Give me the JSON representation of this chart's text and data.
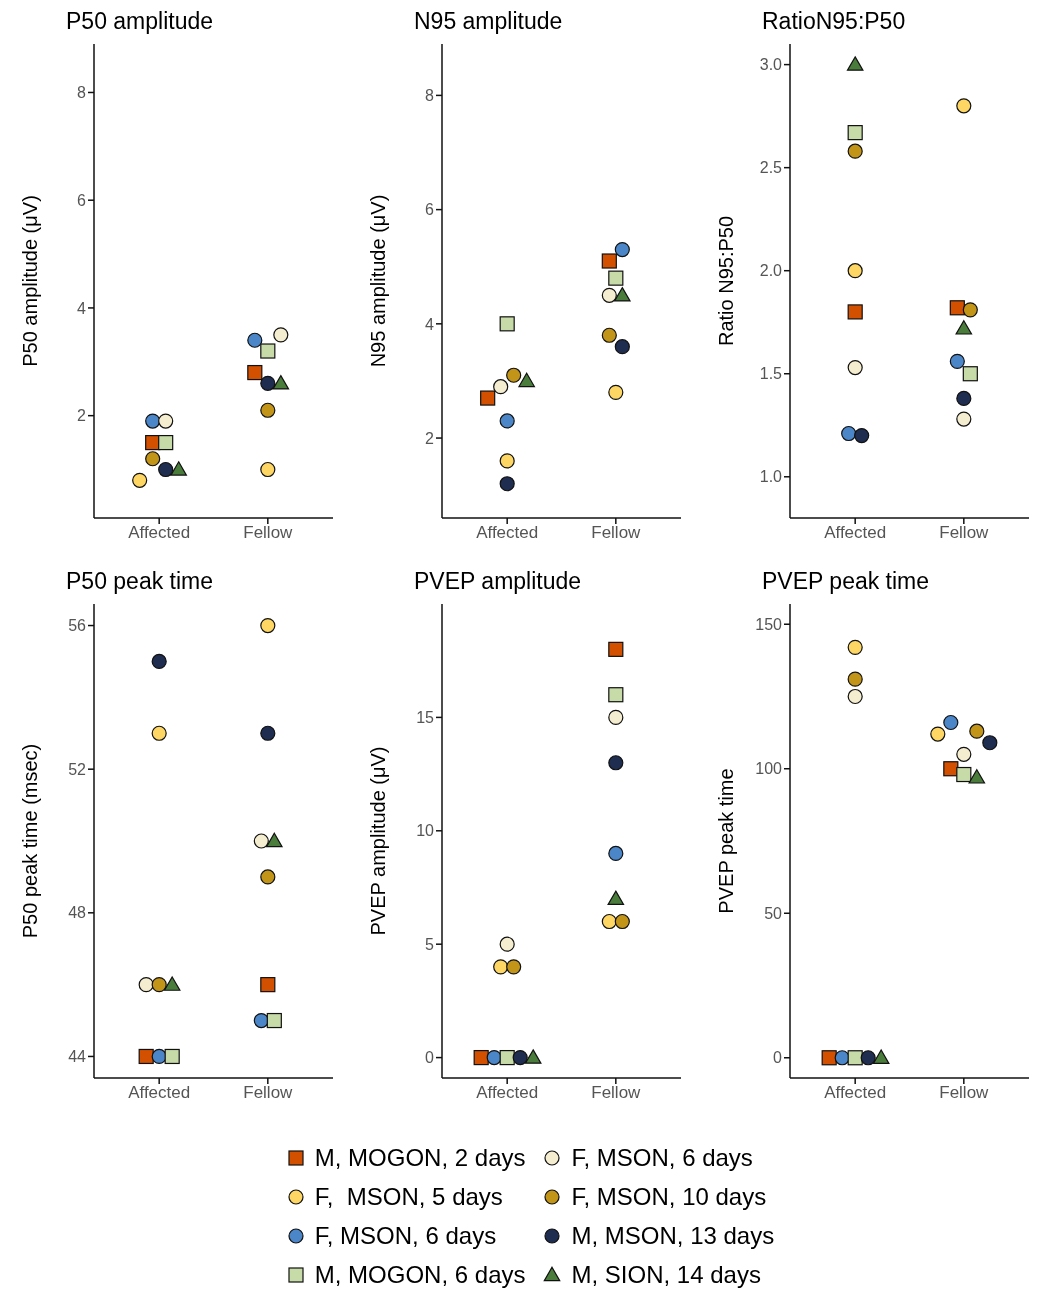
{
  "chart_data": [
    {
      "type": "scatter",
      "title": "P50 amplitude",
      "ylabel": "P50 amplitude (μV)",
      "categories": [
        "Affected",
        "Fellow"
      ],
      "ylim": [
        0.1,
        8.9
      ],
      "yticks": [
        2,
        4,
        6,
        8
      ],
      "legend": "bottom",
      "series": [
        {
          "name": "M, MOGON, 2 days",
          "color": "#d35000",
          "marker": "square",
          "values": [
            1.5,
            2.8
          ]
        },
        {
          "name": "F,  MSON, 5 days",
          "color": "#fdd663",
          "marker": "circle",
          "values": [
            0.8,
            1.0
          ]
        },
        {
          "name": "F, MSON, 6 days",
          "color": "#4a86c8",
          "marker": "circle",
          "values": [
            1.9,
            3.4
          ]
        },
        {
          "name": "M, MOGON, 6 days",
          "color": "#c6dba7",
          "marker": "square",
          "values": [
            1.5,
            3.2
          ]
        },
        {
          "name": "F, MSON, 6 days",
          "color": "#f5edcf",
          "marker": "circle",
          "values": [
            1.9,
            3.5
          ]
        },
        {
          "name": "F, MSON, 10 days",
          "color": "#c29518",
          "marker": "circle",
          "values": [
            1.2,
            2.1
          ]
        },
        {
          "name": "M, MSON, 13 days",
          "color": "#1f2d50",
          "marker": "circle",
          "values": [
            1.0,
            2.6
          ]
        },
        {
          "name": "M, SION, 14 days",
          "color": "#4a7d3c",
          "marker": "triangle",
          "values": [
            1.0,
            2.6
          ]
        }
      ]
    },
    {
      "type": "scatter",
      "title": "N95 amplitude",
      "ylabel": "N95 amplitude (μV)",
      "categories": [
        "Affected",
        "Fellow"
      ],
      "ylim": [
        0.6,
        8.9
      ],
      "yticks": [
        2,
        4,
        6,
        8
      ],
      "series": [
        {
          "color": "#d35000",
          "marker": "square",
          "values": [
            2.7,
            5.1
          ]
        },
        {
          "color": "#fdd663",
          "marker": "circle",
          "values": [
            1.6,
            2.8
          ]
        },
        {
          "color": "#4a86c8",
          "marker": "circle",
          "values": [
            2.3,
            5.3
          ]
        },
        {
          "color": "#c6dba7",
          "marker": "square",
          "values": [
            4.0,
            4.8
          ]
        },
        {
          "color": "#f5edcf",
          "marker": "circle",
          "values": [
            2.9,
            4.5
          ]
        },
        {
          "color": "#c29518",
          "marker": "circle",
          "values": [
            3.1,
            3.8
          ]
        },
        {
          "color": "#1f2d50",
          "marker": "circle",
          "values": [
            1.2,
            3.6
          ]
        },
        {
          "color": "#4a7d3c",
          "marker": "triangle",
          "values": [
            3.0,
            4.5
          ]
        }
      ]
    },
    {
      "type": "scatter",
      "title": "RatioN95:P50",
      "ylabel": "Ratio N95:P50",
      "categories": [
        "Affected",
        "Fellow"
      ],
      "ylim": [
        0.8,
        3.1
      ],
      "yticks": [
        {
          "value": 1,
          "label": "1.0"
        },
        1.5,
        {
          "value": 2,
          "label": "2.0"
        },
        2.5,
        {
          "value": 3,
          "label": "3.0"
        }
      ],
      "series": [
        {
          "color": "#d35000",
          "marker": "square",
          "values": [
            1.8,
            1.82
          ]
        },
        {
          "color": "#fdd663",
          "marker": "circle",
          "values": [
            2.0,
            2.8
          ]
        },
        {
          "color": "#4a86c8",
          "marker": "circle",
          "values": [
            1.21,
            1.56
          ]
        },
        {
          "color": "#c6dba7",
          "marker": "square",
          "values": [
            2.67,
            1.5
          ]
        },
        {
          "color": "#f5edcf",
          "marker": "circle",
          "values": [
            1.53,
            1.28
          ]
        },
        {
          "color": "#c29518",
          "marker": "circle",
          "values": [
            2.58,
            1.81
          ]
        },
        {
          "color": "#1f2d50",
          "marker": "circle",
          "values": [
            1.2,
            1.38
          ]
        },
        {
          "color": "#4a7d3c",
          "marker": "triangle",
          "values": [
            3.0,
            1.72
          ]
        }
      ]
    },
    {
      "type": "scatter",
      "title": "P50 peak time",
      "ylabel": "P50 peak time (msec)",
      "categories": [
        "Affected",
        "Fellow"
      ],
      "ylim": [
        43.4,
        56.6
      ],
      "yticks": [
        44,
        48,
        52,
        56
      ],
      "series": [
        {
          "color": "#d35000",
          "marker": "square",
          "values": [
            44,
            46
          ]
        },
        {
          "color": "#fdd663",
          "marker": "circle",
          "values": [
            53,
            56
          ]
        },
        {
          "color": "#4a86c8",
          "marker": "circle",
          "values": [
            44,
            45
          ]
        },
        {
          "color": "#c6dba7",
          "marker": "square",
          "values": [
            44,
            45
          ]
        },
        {
          "color": "#f5edcf",
          "marker": "circle",
          "values": [
            46,
            50
          ]
        },
        {
          "color": "#c29518",
          "marker": "circle",
          "values": [
            46,
            49
          ]
        },
        {
          "color": "#1f2d50",
          "marker": "circle",
          "values": [
            55,
            53
          ]
        },
        {
          "color": "#4a7d3c",
          "marker": "triangle",
          "values": [
            46,
            50
          ]
        }
      ]
    },
    {
      "type": "scatter",
      "title": "PVEP amplitude",
      "ylabel": "PVEP amplitude (μV)",
      "categories": [
        "Affected",
        "Fellow"
      ],
      "ylim": [
        -0.9,
        20
      ],
      "yticks": [
        0,
        5,
        10,
        15
      ],
      "series": [
        {
          "color": "#d35000",
          "marker": "square",
          "values": [
            0,
            18
          ]
        },
        {
          "color": "#fdd663",
          "marker": "circle",
          "values": [
            4,
            6
          ]
        },
        {
          "color": "#4a86c8",
          "marker": "circle",
          "values": [
            0,
            9
          ]
        },
        {
          "color": "#c6dba7",
          "marker": "square",
          "values": [
            0,
            16
          ]
        },
        {
          "color": "#f5edcf",
          "marker": "circle",
          "values": [
            5,
            15
          ]
        },
        {
          "color": "#c29518",
          "marker": "circle",
          "values": [
            4,
            6
          ]
        },
        {
          "color": "#1f2d50",
          "marker": "circle",
          "values": [
            0,
            13
          ]
        },
        {
          "color": "#4a7d3c",
          "marker": "triangle",
          "values": [
            0,
            7
          ]
        }
      ]
    },
    {
      "type": "scatter",
      "title": "PVEP peak time",
      "ylabel": "PVEP peak time",
      "categories": [
        "Affected",
        "Fellow"
      ],
      "ylim": [
        -7,
        157
      ],
      "yticks": [
        0,
        50,
        100,
        150
      ],
      "series": [
        {
          "color": "#d35000",
          "marker": "square",
          "values": [
            0,
            100
          ]
        },
        {
          "color": "#fdd663",
          "marker": "circle",
          "values": [
            142,
            112
          ]
        },
        {
          "color": "#4a86c8",
          "marker": "circle",
          "values": [
            0,
            116
          ]
        },
        {
          "color": "#c6dba7",
          "marker": "square",
          "values": [
            0,
            98
          ]
        },
        {
          "color": "#f5edcf",
          "marker": "circle",
          "values": [
            125,
            105
          ]
        },
        {
          "color": "#c29518",
          "marker": "circle",
          "values": [
            131,
            113
          ]
        },
        {
          "color": "#1f2d50",
          "marker": "circle",
          "values": [
            0,
            109
          ]
        },
        {
          "color": "#4a7d3c",
          "marker": "triangle",
          "values": [
            0,
            97
          ]
        }
      ]
    }
  ]
}
